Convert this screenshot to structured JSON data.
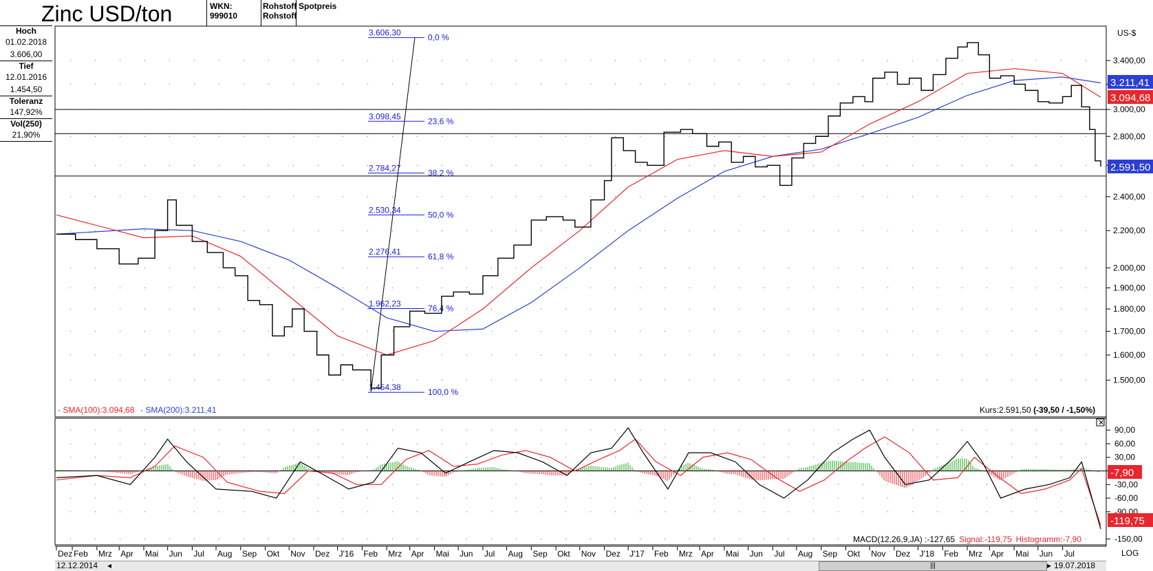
{
  "header": {
    "title": "Zinc USD/ton",
    "wkn": "WKN: 999010",
    "type1": "Rohstoff",
    "type2": "Rohstoff",
    "price_type": "Spotpreis"
  },
  "sidebar": {
    "hoch_label": "Hoch",
    "hoch_date": "01.02.2018",
    "hoch_value": "3.606,00",
    "tief_label": "Tief",
    "tief_date": "12.01.2016",
    "tief_value": "1.454,50",
    "toleranz_label": "Toleranz",
    "toleranz_value": "147,92%",
    "vol_label": "Vol(250)",
    "vol_value": "21,90%"
  },
  "main_chart": {
    "unit": "US-$",
    "legend_sma100": "- SMA(100):3.094,68",
    "legend_sma200": "- SMA(200):3.211,41",
    "kurs_text": "Kurs:2.591,50",
    "kurs_change": "(-39,50 / -1,50%)",
    "badge_sma200": "3.211,41",
    "badge_sma100": "3.094,68",
    "badge_price": "2.591,50",
    "colors": {
      "price": "#000000",
      "sma100": "#e8262b",
      "sma200": "#2b3fd6",
      "fib": "#1a1ae0"
    }
  },
  "macd": {
    "legend_main": "MACD(12,26,9,JA) :-127,65",
    "legend_signal": "Signal:-119,75",
    "legend_hist": "Histogramm:-7,90",
    "badge_hist": "-7,90",
    "badge_signal": "-119,75",
    "colors": {
      "macd": "#000000",
      "signal": "#e8262b",
      "hist_pos": "#19a619",
      "hist_neg": "#e8262b"
    }
  },
  "footer": {
    "date_start": "12.12.2014",
    "date_end": "19.07.2018",
    "log_label": "LOG",
    "scroll_left": "◂",
    "scroll_right": "▸",
    "scroll_grip": "|||"
  },
  "chart_data": [
    {
      "type": "line",
      "title": "Zinc USD/ton",
      "ylabel": "US-$",
      "yscale": "log",
      "ylim": [
        1380,
        3700
      ],
      "y_ticks": [
        1500,
        1600,
        1700,
        1800,
        1900,
        2000,
        2200,
        2400,
        2600,
        2800,
        3000,
        3200,
        3400
      ],
      "y_tick_labels": [
        "1.500,00",
        "1.600,00",
        "1.700,00",
        "1.800,00",
        "1.900,00",
        "2.000,00",
        "2.200,00",
        "2.400,00",
        "2.600,00",
        "2.800,00",
        "3.000,00",
        "3.200,00",
        "3.400,00"
      ],
      "x_month_labels": [
        "Dez",
        "Feb",
        "Mrz",
        "Apr",
        "Mai",
        "Jun",
        "Jul",
        "Aug",
        "Sep",
        "Okt",
        "Nov",
        "Dez",
        "J'16",
        "Feb",
        "Mrz",
        "Apr",
        "Mai",
        "Jun",
        "Jul",
        "Aug",
        "Sep",
        "Okt",
        "Nov",
        "Dez",
        "J'17",
        "Feb",
        "Mrz",
        "Apr",
        "Mai",
        "Jun",
        "Jul",
        "Aug",
        "Sep",
        "Okt",
        "Nov",
        "Dez",
        "J'18",
        "Feb",
        "Mrz",
        "Apr",
        "Mai",
        "Jun",
        "Jul"
      ],
      "x_range": [
        "2014-12-12",
        "2018-07-19"
      ],
      "horizontal_lines": [
        3000,
        2820,
        2530
      ],
      "fibonacci": {
        "high": 3606.3,
        "low": 1454.38,
        "levels": [
          {
            "value": "3.606,30",
            "pct": "0,0 %"
          },
          {
            "value": "3.098,45",
            "pct": "23,6 %"
          },
          {
            "value": "2.784,27",
            "pct": "38,2 %"
          },
          {
            "value": "2.530,34",
            "pct": "50,0 %"
          },
          {
            "value": "2.276,41",
            "pct": "61,8 %"
          },
          {
            "value": "1.962,23",
            "pct": "76,4 %"
          },
          {
            "value": "1.454,38",
            "pct": "100,0 %"
          }
        ]
      },
      "series": [
        {
          "name": "Kurs",
          "x": [
            "2014-12-12",
            "2015-01-05",
            "2015-02-01",
            "2015-03-01",
            "2015-03-25",
            "2015-04-15",
            "2015-05-01",
            "2015-05-12",
            "2015-06-01",
            "2015-06-20",
            "2015-07-10",
            "2015-07-25",
            "2015-08-10",
            "2015-08-25",
            "2015-09-10",
            "2015-09-25",
            "2015-10-05",
            "2015-10-20",
            "2015-11-05",
            "2015-11-20",
            "2015-12-05",
            "2015-12-20",
            "2016-01-12",
            "2016-01-25",
            "2016-02-10",
            "2016-03-01",
            "2016-03-20",
            "2016-04-10",
            "2016-04-25",
            "2016-05-15",
            "2016-06-01",
            "2016-06-20",
            "2016-07-10",
            "2016-08-01",
            "2016-08-20",
            "2016-09-10",
            "2016-09-25",
            "2016-10-15",
            "2016-11-01",
            "2016-11-10",
            "2016-11-25",
            "2016-12-10",
            "2016-12-25",
            "2017-01-15",
            "2017-02-05",
            "2017-02-20",
            "2017-03-10",
            "2017-03-25",
            "2017-04-10",
            "2017-04-25",
            "2017-05-10",
            "2017-05-25",
            "2017-06-10",
            "2017-06-25",
            "2017-07-10",
            "2017-07-25",
            "2017-08-10",
            "2017-08-25",
            "2017-09-10",
            "2017-09-25",
            "2017-10-05",
            "2017-10-20",
            "2017-11-05",
            "2017-11-20",
            "2017-12-05",
            "2017-12-20",
            "2018-01-05",
            "2018-01-20",
            "2018-02-01",
            "2018-02-15",
            "2018-03-01",
            "2018-03-15",
            "2018-04-01",
            "2018-04-15",
            "2018-05-01",
            "2018-05-15",
            "2018-06-01",
            "2018-06-12",
            "2018-06-25",
            "2018-07-05",
            "2018-07-12",
            "2018-07-19"
          ],
          "values": [
            2180,
            2150,
            2100,
            2020,
            2050,
            2200,
            2380,
            2230,
            2140,
            2080,
            2000,
            1960,
            1840,
            1820,
            1680,
            1720,
            1800,
            1700,
            1600,
            1520,
            1560,
            1540,
            1470,
            1600,
            1720,
            1790,
            1780,
            1860,
            1880,
            1870,
            1960,
            2050,
            2120,
            2260,
            2280,
            2260,
            2220,
            2380,
            2500,
            2790,
            2700,
            2620,
            2600,
            2830,
            2850,
            2820,
            2730,
            2760,
            2620,
            2660,
            2590,
            2600,
            2470,
            2650,
            2750,
            2800,
            2950,
            3050,
            3100,
            3060,
            3250,
            3300,
            3200,
            3250,
            3150,
            3280,
            3420,
            3520,
            3560,
            3450,
            3250,
            3270,
            3200,
            3150,
            3060,
            3050,
            3100,
            3190,
            3020,
            2850,
            2630,
            2592
          ]
        },
        {
          "name": "SMA(100)",
          "x": [
            "2014-12-12",
            "2015-04-01",
            "2015-06-01",
            "2015-08-01",
            "2015-10-01",
            "2015-12-01",
            "2016-02-01",
            "2016-04-01",
            "2016-06-01",
            "2016-08-01",
            "2016-10-01",
            "2016-12-01",
            "2017-02-01",
            "2017-04-01",
            "2017-06-01",
            "2017-08-01",
            "2017-10-01",
            "2017-12-01",
            "2018-02-01",
            "2018-04-01",
            "2018-06-01",
            "2018-07-19"
          ],
          "values": [
            2290,
            2160,
            2170,
            2060,
            1860,
            1680,
            1600,
            1660,
            1800,
            2000,
            2200,
            2460,
            2640,
            2700,
            2660,
            2690,
            2890,
            3060,
            3290,
            3330,
            3290,
            3095
          ]
        },
        {
          "name": "SMA(200)",
          "x": [
            "2014-12-12",
            "2015-04-01",
            "2015-06-01",
            "2015-08-01",
            "2015-10-01",
            "2015-12-01",
            "2016-02-01",
            "2016-04-01",
            "2016-06-01",
            "2016-08-01",
            "2016-10-01",
            "2016-12-01",
            "2017-02-01",
            "2017-04-01",
            "2017-06-01",
            "2017-08-01",
            "2017-10-01",
            "2017-12-01",
            "2018-02-01",
            "2018-04-01",
            "2018-06-01",
            "2018-07-19"
          ],
          "values": [
            2180,
            2210,
            2200,
            2140,
            2040,
            1900,
            1760,
            1700,
            1710,
            1830,
            2000,
            2200,
            2390,
            2560,
            2660,
            2710,
            2820,
            2940,
            3110,
            3230,
            3260,
            3211
          ]
        }
      ]
    },
    {
      "type": "line",
      "title": "MACD(12,26,9,JA)",
      "ylim": [
        -160,
        110
      ],
      "y_ticks": [
        90,
        60,
        30,
        0,
        -30,
        -60,
        -90,
        -150
      ],
      "y_tick_labels": [
        "90,00",
        "60,00",
        "30,00",
        "0",
        "-30,00",
        "-60,00",
        "-90,00",
        "-150,00"
      ],
      "series": [
        {
          "name": "MACD",
          "x": [
            "2014-12-12",
            "2015-02-01",
            "2015-03-15",
            "2015-04-15",
            "2015-05-01",
            "2015-05-25",
            "2015-07-01",
            "2015-08-15",
            "2015-09-15",
            "2015-10-15",
            "2015-11-15",
            "2015-12-15",
            "2016-01-15",
            "2016-02-15",
            "2016-03-15",
            "2016-04-15",
            "2016-05-15",
            "2016-06-15",
            "2016-07-15",
            "2016-08-15",
            "2016-09-15",
            "2016-10-15",
            "2016-11-10",
            "2016-12-01",
            "2016-12-20",
            "2017-01-20",
            "2017-02-15",
            "2017-03-15",
            "2017-04-15",
            "2017-05-15",
            "2017-06-15",
            "2017-07-15",
            "2017-08-15",
            "2017-09-10",
            "2017-10-01",
            "2017-10-20",
            "2017-11-15",
            "2017-12-15",
            "2018-01-15",
            "2018-02-01",
            "2018-02-20",
            "2018-03-15",
            "2018-04-15",
            "2018-05-15",
            "2018-06-10",
            "2018-06-25",
            "2018-07-19"
          ],
          "values": [
            -15,
            -10,
            -30,
            30,
            70,
            20,
            -40,
            -45,
            -60,
            20,
            -10,
            -40,
            -25,
            50,
            40,
            -5,
            20,
            45,
            40,
            20,
            -10,
            40,
            50,
            95,
            40,
            -40,
            40,
            40,
            20,
            -30,
            -60,
            -20,
            40,
            70,
            90,
            30,
            -30,
            -20,
            30,
            65,
            20,
            -60,
            -40,
            -30,
            -15,
            20,
            -128
          ]
        },
        {
          "name": "Signal",
          "x": [
            "2014-12-12",
            "2015-02-01",
            "2015-03-15",
            "2015-04-15",
            "2015-05-10",
            "2015-06-15",
            "2015-07-15",
            "2015-08-25",
            "2015-09-25",
            "2015-10-25",
            "2015-11-25",
            "2015-12-25",
            "2016-01-25",
            "2016-02-25",
            "2016-03-25",
            "2016-04-25",
            "2016-05-25",
            "2016-06-25",
            "2016-07-25",
            "2016-08-25",
            "2016-09-25",
            "2016-10-25",
            "2016-11-20",
            "2016-12-10",
            "2017-01-05",
            "2017-02-05",
            "2017-03-05",
            "2017-04-05",
            "2017-05-05",
            "2017-06-05",
            "2017-07-05",
            "2017-08-05",
            "2017-09-05",
            "2017-09-25",
            "2017-10-20",
            "2017-11-20",
            "2017-12-20",
            "2018-01-20",
            "2018-02-10",
            "2018-03-10",
            "2018-04-10",
            "2018-05-10",
            "2018-06-10",
            "2018-06-25",
            "2018-07-19"
          ],
          "values": [
            -20,
            -10,
            -15,
            10,
            55,
            30,
            -25,
            -45,
            -50,
            0,
            -5,
            -30,
            -30,
            25,
            45,
            10,
            15,
            35,
            45,
            30,
            0,
            25,
            45,
            70,
            20,
            -10,
            30,
            40,
            25,
            -15,
            -45,
            -20,
            25,
            50,
            75,
            40,
            -20,
            -15,
            30,
            -10,
            -50,
            -40,
            -20,
            5,
            -120
          ]
        }
      ]
    }
  ]
}
